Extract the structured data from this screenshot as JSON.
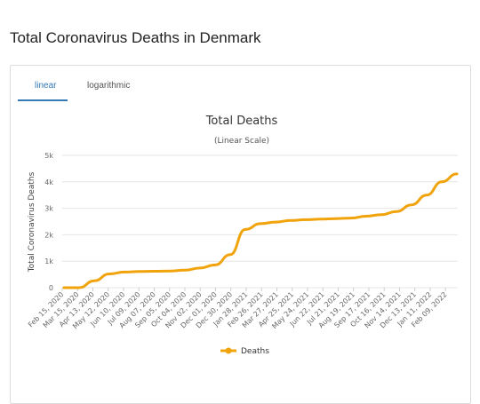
{
  "page": {
    "title": "Total Coronavirus Deaths in Denmark"
  },
  "tabs": [
    {
      "label": "linear",
      "active": true
    },
    {
      "label": "logarithmic",
      "active": false
    }
  ],
  "colors": {
    "accent": "#337ab7",
    "series": "#f0a30a",
    "grid": "#e6e6e6"
  },
  "chart_data": {
    "type": "line",
    "title": "Total Deaths",
    "subtitle": "(Linear Scale)",
    "ylabel": "Total Coronavirus Deaths",
    "xlabel": "",
    "ylim": [
      0,
      5000
    ],
    "yticks": [
      {
        "value": 0,
        "label": "0"
      },
      {
        "value": 1000,
        "label": "1k"
      },
      {
        "value": 2000,
        "label": "2k"
      },
      {
        "value": 3000,
        "label": "3k"
      },
      {
        "value": 4000,
        "label": "4k"
      },
      {
        "value": 5000,
        "label": "5k"
      }
    ],
    "xtick_labels": [
      "Feb 15, 2020",
      "Mar 15, 2020",
      "Apr 13, 2020",
      "May 12, 2020",
      "Jun 10, 2020",
      "Jul 09, 2020",
      "Aug 07, 2020",
      "Sep 05, 2020",
      "Oct 04, 2020",
      "Nov 02, 2020",
      "Dec 01, 2020",
      "Dec 30, 2020",
      "Jan 28, 2021",
      "Feb 26, 2021",
      "Mar 27, 2021",
      "Apr 25, 2021",
      "May 24, 2021",
      "Jun 22, 2021",
      "Jul 21, 2021",
      "Aug 19, 2021",
      "Sep 17, 2021",
      "Oct 16, 2021",
      "Nov 14, 2021",
      "Dec 13, 2021",
      "Jan 11, 2022",
      "Feb 09, 2022"
    ],
    "grid": true,
    "legend_position": "bottom",
    "series": [
      {
        "name": "Deaths",
        "values": [
          0,
          0,
          260,
          520,
          590,
          610,
          620,
          630,
          660,
          740,
          860,
          1250,
          2200,
          2420,
          2480,
          2540,
          2570,
          2590,
          2610,
          2630,
          2700,
          2760,
          2880,
          3130,
          3500,
          4000,
          4300
        ]
      }
    ]
  }
}
